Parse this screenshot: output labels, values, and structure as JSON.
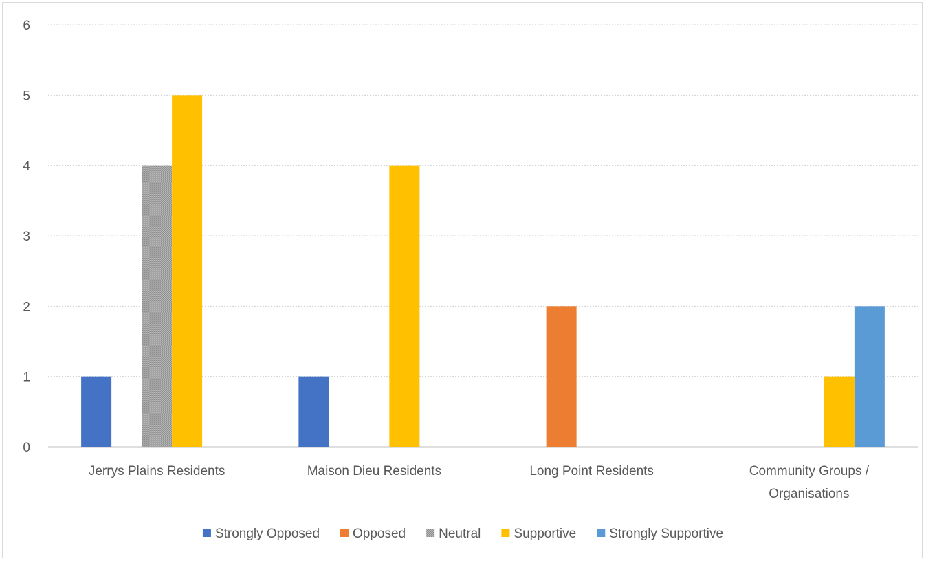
{
  "chart_data": {
    "type": "bar",
    "categories": [
      [
        "Jerrys Plains Residents"
      ],
      [
        "Maison Dieu Residents"
      ],
      [
        "Long Point Residents"
      ],
      [
        "Community Groups /",
        "Organisations"
      ]
    ],
    "series": [
      {
        "name": "Strongly Opposed",
        "color": "#4472c4",
        "pattern": "solid",
        "values": [
          1,
          1,
          0,
          0
        ]
      },
      {
        "name": "Opposed",
        "color": "#ed7d31",
        "pattern": "solid",
        "values": [
          0,
          0,
          2,
          0
        ]
      },
      {
        "name": "Neutral",
        "color": "#a5a5a5",
        "pattern": "dotted",
        "values": [
          4,
          0,
          0,
          0
        ]
      },
      {
        "name": "Supportive",
        "color": "#ffc000",
        "pattern": "solid",
        "values": [
          5,
          4,
          0,
          1
        ]
      },
      {
        "name": "Strongly Supportive",
        "color": "#5b9bd5",
        "pattern": "solid",
        "values": [
          0,
          0,
          0,
          2
        ]
      }
    ],
    "yticks": [
      "0",
      "1",
      "2",
      "3",
      "4",
      "5",
      "6"
    ],
    "ylim": [
      0,
      6
    ],
    "grid": true,
    "legend": "bottom",
    "title": "",
    "xlabel": "",
    "ylabel": ""
  }
}
